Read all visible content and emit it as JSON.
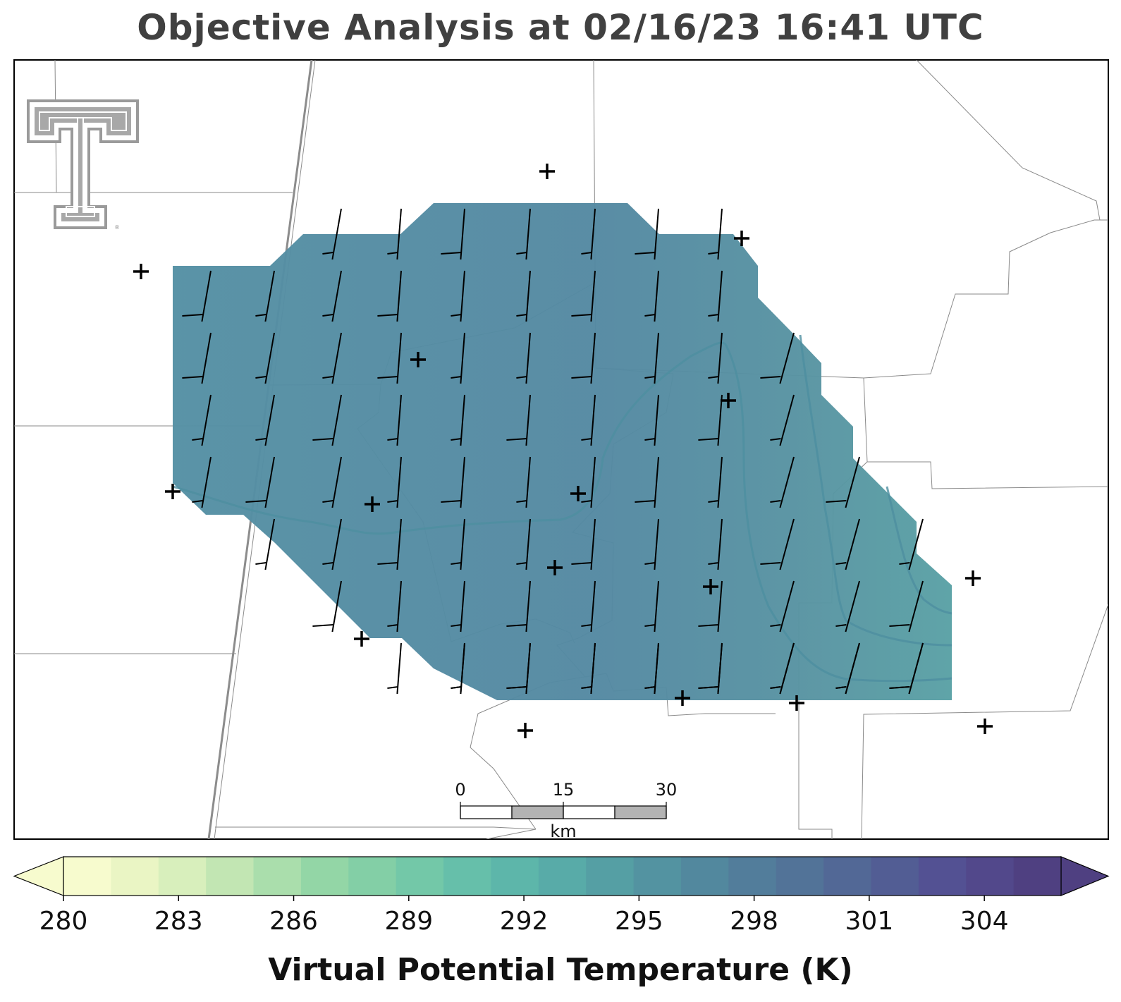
{
  "title": "Objective Analysis at 02/16/23 16:41 UTC",
  "colorbar": {
    "label": "Virtual Potential Temperature (K)",
    "ticks": [
      "280",
      "283",
      "286",
      "289",
      "292",
      "295",
      "298",
      "301",
      "304"
    ],
    "min": 280,
    "max": 306,
    "extend": "both",
    "colors": [
      "#f7fbce",
      "#eaf5c4",
      "#d8efbc",
      "#c2e6b3",
      "#aadeac",
      "#93d6a6",
      "#83cfa6",
      "#73c8a8",
      "#66bfaa",
      "#5db6aa",
      "#58aba8",
      "#559fa4",
      "#5393a1",
      "#52889e",
      "#527d9b",
      "#527398",
      "#526896",
      "#525d94",
      "#535193",
      "#52488b",
      "#4f4081"
    ]
  },
  "scale_bar": {
    "unit": "km",
    "labels": [
      "0",
      "15",
      "30"
    ]
  },
  "analysis": {
    "field": "Virtual Potential Temperature",
    "units": "K",
    "contour_values": [
      293,
      294,
      295,
      296,
      297
    ]
  },
  "logo": {
    "name": "texas-tech-double-t"
  }
}
